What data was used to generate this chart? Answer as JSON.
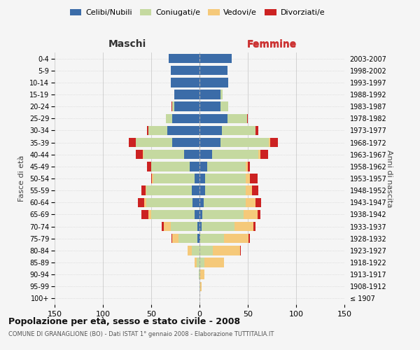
{
  "age_groups": [
    "100+",
    "95-99",
    "90-94",
    "85-89",
    "80-84",
    "75-79",
    "70-74",
    "65-69",
    "60-64",
    "55-59",
    "50-54",
    "45-49",
    "40-44",
    "35-39",
    "30-34",
    "25-29",
    "20-24",
    "15-19",
    "10-14",
    "5-9",
    "0-4"
  ],
  "birth_years": [
    "≤ 1907",
    "1908-1912",
    "1913-1917",
    "1918-1922",
    "1923-1927",
    "1928-1932",
    "1933-1937",
    "1938-1942",
    "1943-1947",
    "1948-1952",
    "1953-1957",
    "1958-1962",
    "1963-1967",
    "1968-1972",
    "1973-1977",
    "1978-1982",
    "1983-1987",
    "1988-1992",
    "1993-1997",
    "1998-2002",
    "2003-2007"
  ],
  "maschi": {
    "celibi": [
      0,
      0,
      0,
      0,
      0,
      2,
      2,
      5,
      7,
      8,
      5,
      10,
      16,
      28,
      33,
      28,
      26,
      26,
      30,
      30,
      32
    ],
    "coniugati": [
      0,
      0,
      1,
      3,
      8,
      20,
      28,
      45,
      48,
      47,
      43,
      40,
      42,
      38,
      20,
      7,
      2,
      0,
      0,
      0,
      0
    ],
    "vedovi": [
      0,
      0,
      0,
      2,
      4,
      6,
      7,
      3,
      2,
      1,
      1,
      0,
      1,
      0,
      0,
      0,
      0,
      0,
      0,
      0,
      0
    ],
    "divorziati": [
      0,
      0,
      0,
      0,
      0,
      1,
      2,
      7,
      7,
      4,
      1,
      4,
      7,
      7,
      1,
      0,
      1,
      0,
      0,
      0,
      0
    ]
  },
  "femmine": {
    "nubili": [
      0,
      0,
      0,
      0,
      0,
      1,
      2,
      3,
      4,
      6,
      6,
      8,
      13,
      22,
      23,
      29,
      22,
      22,
      30,
      29,
      33
    ],
    "coniugate": [
      0,
      1,
      1,
      5,
      14,
      24,
      34,
      43,
      44,
      42,
      42,
      40,
      48,
      50,
      35,
      20,
      8,
      2,
      0,
      0,
      0
    ],
    "vedove": [
      0,
      1,
      4,
      20,
      28,
      26,
      20,
      14,
      10,
      6,
      4,
      2,
      2,
      1,
      0,
      0,
      0,
      0,
      0,
      0,
      0
    ],
    "divorziate": [
      0,
      0,
      0,
      0,
      1,
      1,
      2,
      3,
      6,
      7,
      8,
      2,
      8,
      8,
      3,
      1,
      0,
      0,
      0,
      0,
      0
    ]
  },
  "colors": {
    "celibi": "#3b6ca8",
    "coniugati": "#c5d9a0",
    "vedovi": "#f5c97a",
    "divorziati": "#cc2222"
  },
  "xlim": 150,
  "title": "Popolazione per età, sesso e stato civile - 2008",
  "subtitle": "COMUNE DI GRANAGLIONE (BO) - Dati ISTAT 1° gennaio 2008 - Elaborazione TUTTITALIA.IT",
  "ylabel_left": "Fasce di età",
  "ylabel_right": "Anni di nascita",
  "xlabel_left": "Maschi",
  "xlabel_right": "Femmine",
  "background_color": "#f5f5f5",
  "grid_color": "#cccccc"
}
